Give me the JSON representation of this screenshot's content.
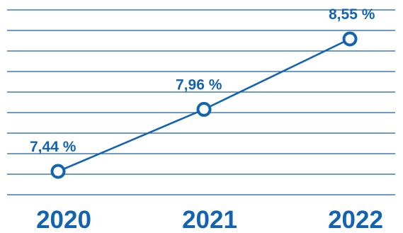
{
  "chart_data": {
    "type": "line",
    "title": "",
    "xlabel": "",
    "ylabel": "",
    "categories": [
      "2020",
      "2021",
      "2022"
    ],
    "series": [
      {
        "values": [
          7.44,
          7.96,
          8.55
        ],
        "data_labels": [
          "7,44 %",
          "7,96 %",
          "8,55 %"
        ]
      }
    ],
    "grid": true,
    "legend": "none",
    "colors": {
      "line": "#1463b0",
      "grid": "#1a5fa8",
      "text": "#1463b0",
      "marker_fill": "#ffffff"
    }
  }
}
